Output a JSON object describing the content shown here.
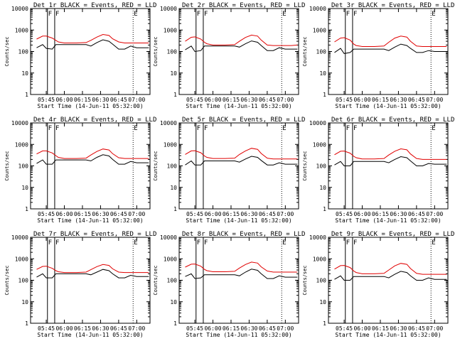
{
  "colors": {
    "events": "#000000",
    "lld": "#e00000",
    "axis": "#000000",
    "background": "#ffffff"
  },
  "chart_data": [
    {
      "type": "line",
      "title": "Det 1r BLACK = Events, RED = LLD",
      "xlabel": "Start Time (14-Jun-11 05:32:00)",
      "ylabel": "Counts/sec",
      "y_scale": "log",
      "ylim": [
        1,
        10000
      ],
      "xlim": [
        "05:32",
        "07:11"
      ],
      "x_ticks": [
        "05:45",
        "06:00",
        "06:15",
        "06:30",
        "06:45",
        "07:00"
      ],
      "y_ticks": [
        "1",
        "10",
        "100",
        "1000",
        "10000"
      ],
      "markers": [
        {
          "label": "F",
          "x": "05:46"
        },
        {
          "label": "F",
          "x": "05:52"
        },
        {
          "label": "E",
          "x": "06:57"
        }
      ],
      "x": [
        "05:37",
        "05:42",
        "05:45",
        "05:50",
        "05:53",
        "05:55",
        "06:00",
        "06:10",
        "06:18",
        "06:22",
        "06:27",
        "06:32",
        "06:37",
        "06:40",
        "06:45",
        "06:50",
        "06:55",
        "07:00",
        "07:05",
        "07:10"
      ],
      "series": [
        {
          "name": "LLD",
          "color": "red",
          "values": [
            380,
            520,
            520,
            420,
            330,
            280,
            250,
            250,
            260,
            330,
            470,
            620,
            560,
            390,
            280,
            250,
            250,
            250,
            250,
            250
          ]
        },
        {
          "name": "Events",
          "color": "black",
          "values": [
            150,
            210,
            140,
            130,
            210,
            210,
            210,
            210,
            210,
            180,
            260,
            350,
            300,
            220,
            130,
            130,
            180,
            150,
            150,
            150
          ]
        }
      ]
    },
    {
      "type": "line",
      "title": "Det 2r BLACK = Events, RED = LLD",
      "xlabel": "Start Time (14-Jun-11 05:32:00)",
      "ylabel": "Counts/sec",
      "y_scale": "log",
      "ylim": [
        1,
        10000
      ],
      "xlim": [
        "05:32",
        "07:11"
      ],
      "x_ticks": [
        "05:45",
        "06:00",
        "06:15",
        "06:30",
        "06:45",
        "07:00"
      ],
      "y_ticks": [
        "1",
        "10",
        "100",
        "1000",
        "10000"
      ],
      "markers": [
        {
          "label": "F",
          "x": "05:46"
        },
        {
          "label": "F",
          "x": "05:52"
        },
        {
          "label": "E",
          "x": "06:57"
        }
      ],
      "x": [
        "05:37",
        "05:42",
        "05:45",
        "05:50",
        "05:53",
        "05:55",
        "06:00",
        "06:10",
        "06:18",
        "06:22",
        "06:27",
        "06:32",
        "06:37",
        "06:40",
        "06:45",
        "06:50",
        "06:55",
        "07:00",
        "07:05",
        "07:10"
      ],
      "series": [
        {
          "name": "LLD",
          "color": "red",
          "values": [
            300,
            460,
            480,
            380,
            270,
            230,
            200,
            200,
            210,
            300,
            450,
            580,
            520,
            340,
            200,
            190,
            190,
            190,
            190,
            200
          ]
        },
        {
          "name": "Events",
          "color": "black",
          "values": [
            120,
            180,
            100,
            110,
            180,
            180,
            180,
            180,
            180,
            160,
            230,
            310,
            270,
            190,
            110,
            110,
            150,
            130,
            130,
            130
          ]
        }
      ]
    },
    {
      "type": "line",
      "title": "Det 3r BLACK = Events, RED = LLD",
      "xlabel": "Start Time (14-Jun-11 05:32:00)",
      "ylabel": "Counts/sec",
      "y_scale": "log",
      "ylim": [
        1,
        10000
      ],
      "xlim": [
        "05:32",
        "07:11"
      ],
      "x_ticks": [
        "05:45",
        "06:00",
        "06:15",
        "06:30",
        "06:45",
        "07:00"
      ],
      "y_ticks": [
        "1",
        "10",
        "100",
        "1000",
        "10000"
      ],
      "markers": [
        {
          "label": "F",
          "x": "05:46"
        },
        {
          "label": "F",
          "x": "05:52"
        },
        {
          "label": "E",
          "x": "06:57"
        }
      ],
      "x": [
        "05:37",
        "05:42",
        "05:45",
        "05:50",
        "05:53",
        "05:55",
        "06:00",
        "06:10",
        "06:18",
        "06:22",
        "06:27",
        "06:32",
        "06:37",
        "06:40",
        "06:45",
        "06:50",
        "06:55",
        "07:00",
        "07:05",
        "07:10"
      ],
      "series": [
        {
          "name": "LLD",
          "color": "red",
          "values": [
            280,
            420,
            440,
            340,
            220,
            190,
            170,
            170,
            180,
            270,
            420,
            520,
            470,
            300,
            180,
            170,
            170,
            170,
            170,
            170
          ]
        },
        {
          "name": "Events",
          "color": "black",
          "values": [
            90,
            140,
            80,
            90,
            130,
            130,
            130,
            130,
            130,
            110,
            160,
            220,
            190,
            140,
            90,
            90,
            110,
            100,
            100,
            100
          ]
        }
      ]
    },
    {
      "type": "line",
      "title": "Det 4r BLACK = Events, RED = LLD",
      "xlabel": "Start Time (14-Jun-11 05:32:00)",
      "ylabel": "Counts/sec",
      "y_scale": "log",
      "ylim": [
        1,
        10000
      ],
      "xlim": [
        "05:32",
        "07:11"
      ],
      "x_ticks": [
        "05:45",
        "06:00",
        "06:15",
        "06:30",
        "06:45",
        "07:00"
      ],
      "y_ticks": [
        "1",
        "10",
        "100",
        "1000",
        "10000"
      ],
      "markers": [
        {
          "label": "F",
          "x": "05:46"
        },
        {
          "label": "F",
          "x": "05:52"
        },
        {
          "label": "E",
          "x": "06:57"
        }
      ],
      "x": [
        "05:37",
        "05:42",
        "05:45",
        "05:50",
        "05:53",
        "05:55",
        "06:00",
        "06:10",
        "06:18",
        "06:22",
        "06:27",
        "06:32",
        "06:37",
        "06:40",
        "06:45",
        "06:50",
        "06:55",
        "07:00",
        "07:05",
        "07:10"
      ],
      "series": [
        {
          "name": "LLD",
          "color": "red",
          "values": [
            360,
            500,
            500,
            400,
            300,
            250,
            220,
            220,
            230,
            320,
            470,
            610,
            550,
            370,
            240,
            220,
            220,
            220,
            220,
            220
          ]
        },
        {
          "name": "Events",
          "color": "black",
          "values": [
            130,
            190,
            120,
            120,
            190,
            190,
            190,
            190,
            190,
            170,
            250,
            330,
            290,
            200,
            120,
            120,
            160,
            140,
            140,
            140
          ]
        }
      ]
    },
    {
      "type": "line",
      "title": "Det 5r BLACK = Events, RED = LLD",
      "xlabel": "Start Time (14-Jun-11 05:32:00)",
      "ylabel": "Counts/sec",
      "y_scale": "log",
      "ylim": [
        1,
        10000
      ],
      "xlim": [
        "05:32",
        "07:11"
      ],
      "x_ticks": [
        "05:45",
        "06:00",
        "06:15",
        "06:30",
        "06:45",
        "07:00"
      ],
      "y_ticks": [
        "1",
        "10",
        "100",
        "1000",
        "10000"
      ],
      "markers": [
        {
          "label": "F",
          "x": "05:46"
        },
        {
          "label": "F",
          "x": "05:52"
        },
        {
          "label": "E",
          "x": "06:57"
        }
      ],
      "x": [
        "05:37",
        "05:42",
        "05:45",
        "05:50",
        "05:53",
        "05:55",
        "06:00",
        "06:10",
        "06:18",
        "06:22",
        "06:27",
        "06:32",
        "06:37",
        "06:40",
        "06:45",
        "06:50",
        "06:55",
        "07:00",
        "07:05",
        "07:10"
      ],
      "series": [
        {
          "name": "LLD",
          "color": "red",
          "values": [
            340,
            500,
            510,
            410,
            290,
            250,
            220,
            220,
            230,
            340,
            500,
            660,
            590,
            380,
            230,
            210,
            210,
            210,
            210,
            210
          ]
        },
        {
          "name": "Events",
          "color": "black",
          "values": [
            110,
            170,
            110,
            110,
            170,
            170,
            170,
            170,
            170,
            150,
            210,
            280,
            250,
            180,
            110,
            110,
            140,
            120,
            120,
            120
          ]
        }
      ]
    },
    {
      "type": "line",
      "title": "Det 6r BLACK = Events, RED = LLD",
      "xlabel": "Start Time (14-Jun-11 05:32:00)",
      "ylabel": "Counts/sec",
      "y_scale": "log",
      "ylim": [
        1,
        10000
      ],
      "xlim": [
        "05:32",
        "07:11"
      ],
      "x_ticks": [
        "05:45",
        "06:00",
        "06:15",
        "06:30",
        "06:45",
        "07:00"
      ],
      "y_ticks": [
        "1",
        "10",
        "100",
        "1000",
        "10000"
      ],
      "markers": [
        {
          "label": "F",
          "x": "05:46"
        },
        {
          "label": "F",
          "x": "05:52"
        },
        {
          "label": "E",
          "x": "06:57"
        }
      ],
      "x": [
        "05:37",
        "05:42",
        "05:45",
        "05:50",
        "05:53",
        "05:55",
        "06:00",
        "06:10",
        "06:18",
        "06:22",
        "06:27",
        "06:32",
        "06:37",
        "06:40",
        "06:45",
        "06:50",
        "06:55",
        "07:00",
        "07:05",
        "07:10"
      ],
      "series": [
        {
          "name": "LLD",
          "color": "red",
          "values": [
            330,
            480,
            490,
            390,
            280,
            240,
            210,
            210,
            220,
            320,
            480,
            620,
            560,
            360,
            220,
            200,
            200,
            200,
            200,
            200
          ]
        },
        {
          "name": "Events",
          "color": "black",
          "values": [
            110,
            160,
            100,
            100,
            160,
            160,
            160,
            160,
            160,
            140,
            200,
            270,
            240,
            170,
            100,
            100,
            130,
            120,
            120,
            120
          ]
        }
      ]
    },
    {
      "type": "line",
      "title": "Det 7r BLACK = Events, RED = LLD",
      "xlabel": "Start Time (14-Jun-11 05:32:00)",
      "ylabel": "Counts/sec",
      "y_scale": "log",
      "ylim": [
        1,
        10000
      ],
      "xlim": [
        "05:32",
        "07:11"
      ],
      "x_ticks": [
        "05:45",
        "06:00",
        "06:15",
        "06:30",
        "06:45",
        "07:00"
      ],
      "y_ticks": [
        "1",
        "10",
        "100",
        "1000",
        "10000"
      ],
      "markers": [
        {
          "label": "F",
          "x": "05:46"
        },
        {
          "label": "F",
          "x": "05:52"
        },
        {
          "label": "E",
          "x": "06:57"
        }
      ],
      "x": [
        "05:37",
        "05:42",
        "05:45",
        "05:50",
        "05:53",
        "05:55",
        "06:00",
        "06:10",
        "06:18",
        "06:22",
        "06:27",
        "06:32",
        "06:37",
        "06:40",
        "06:45",
        "06:50",
        "06:55",
        "07:00",
        "07:05",
        "07:10"
      ],
      "series": [
        {
          "name": "LLD",
          "color": "red",
          "values": [
            320,
            440,
            450,
            360,
            280,
            250,
            230,
            230,
            240,
            310,
            430,
            540,
            490,
            340,
            240,
            230,
            230,
            230,
            230,
            230
          ]
        },
        {
          "name": "Events",
          "color": "black",
          "values": [
            140,
            200,
            130,
            130,
            200,
            200,
            200,
            200,
            200,
            180,
            240,
            320,
            280,
            200,
            130,
            130,
            170,
            150,
            150,
            150
          ]
        }
      ]
    },
    {
      "type": "line",
      "title": "Det 8r BLACK = Events, RED = LLD",
      "xlabel": "Start Time (14-Jun-11 05:32:00)",
      "ylabel": "Counts/sec",
      "y_scale": "log",
      "ylim": [
        1,
        10000
      ],
      "xlim": [
        "05:32",
        "07:11"
      ],
      "x_ticks": [
        "05:45",
        "06:00",
        "06:15",
        "06:30",
        "06:45",
        "07:00"
      ],
      "y_ticks": [
        "1",
        "10",
        "100",
        "1000",
        "10000"
      ],
      "markers": [
        {
          "label": "F",
          "x": "05:46"
        },
        {
          "label": "F",
          "x": "05:52"
        },
        {
          "label": "E",
          "x": "06:57"
        }
      ],
      "x": [
        "05:37",
        "05:42",
        "05:45",
        "05:50",
        "05:53",
        "05:55",
        "06:00",
        "06:10",
        "06:18",
        "06:22",
        "06:27",
        "06:32",
        "06:37",
        "06:40",
        "06:45",
        "06:50",
        "06:55",
        "07:00",
        "07:05",
        "07:10"
      ],
      "series": [
        {
          "name": "LLD",
          "color": "red",
          "values": [
            410,
            560,
            570,
            450,
            320,
            280,
            250,
            250,
            260,
            370,
            540,
            700,
            630,
            420,
            270,
            240,
            240,
            240,
            240,
            240
          ]
        },
        {
          "name": "Events",
          "color": "black",
          "values": [
            150,
            200,
            120,
            130,
            180,
            180,
            180,
            180,
            180,
            160,
            240,
            330,
            290,
            200,
            120,
            120,
            160,
            140,
            140,
            140
          ]
        }
      ]
    },
    {
      "type": "line",
      "title": "Det 9r BLACK = Events, RED = LLD",
      "xlabel": "Start Time (14-Jun-11 05:32:00)",
      "ylabel": "Counts/sec",
      "y_scale": "log",
      "ylim": [
        1,
        10000
      ],
      "xlim": [
        "05:32",
        "07:11"
      ],
      "x_ticks": [
        "05:45",
        "06:00",
        "06:15",
        "06:30",
        "06:45",
        "07:00"
      ],
      "y_ticks": [
        "1",
        "10",
        "100",
        "1000",
        "10000"
      ],
      "markers": [
        {
          "label": "F",
          "x": "05:46"
        },
        {
          "label": "F",
          "x": "05:52"
        },
        {
          "label": "E",
          "x": "06:57"
        }
      ],
      "x": [
        "05:37",
        "05:42",
        "05:45",
        "05:50",
        "05:53",
        "05:55",
        "06:00",
        "06:10",
        "06:18",
        "06:22",
        "06:27",
        "06:32",
        "06:37",
        "06:40",
        "06:45",
        "06:50",
        "06:55",
        "07:00",
        "07:05",
        "07:10"
      ],
      "series": [
        {
          "name": "LLD",
          "color": "red",
          "values": [
            330,
            480,
            490,
            390,
            270,
            230,
            200,
            200,
            210,
            300,
            470,
            610,
            550,
            350,
            210,
            190,
            190,
            190,
            190,
            190
          ]
        },
        {
          "name": "Events",
          "color": "black",
          "values": [
            110,
            160,
            100,
            100,
            150,
            150,
            150,
            150,
            150,
            130,
            190,
            260,
            230,
            160,
            100,
            100,
            130,
            110,
            110,
            110
          ]
        }
      ]
    }
  ]
}
